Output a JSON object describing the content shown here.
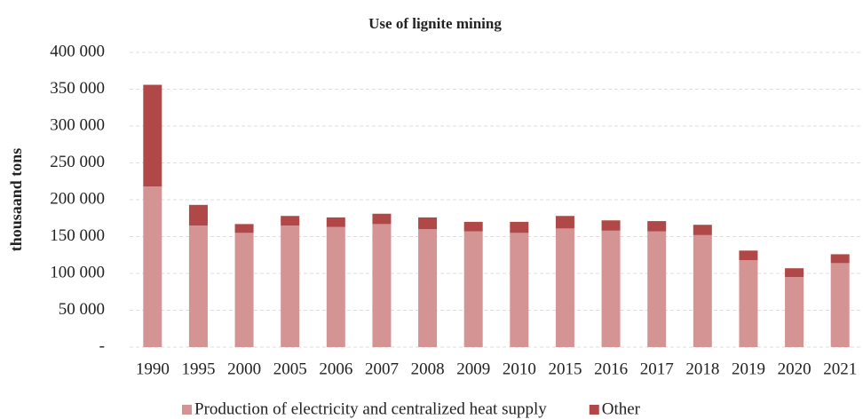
{
  "chart_data": {
    "type": "stacked_bar",
    "title": "Use of lignite mining",
    "ylabel": "thousaand tons",
    "categories": [
      "1990",
      "1995",
      "2000",
      "2005",
      "2006",
      "2007",
      "2008",
      "2009",
      "2010",
      "2015",
      "2016",
      "2017",
      "2018",
      "2019",
      "2020",
      "2021"
    ],
    "series": [
      {
        "name": "Production of electricity and centralized heat supply",
        "color": "#d49494",
        "values": [
          218000,
          165000,
          155000,
          165000,
          163000,
          167000,
          160000,
          157000,
          155000,
          161000,
          158000,
          157000,
          152000,
          118000,
          95000,
          114000
        ]
      },
      {
        "name": "Other",
        "color": "#b04848",
        "values": [
          138000,
          28000,
          12000,
          13000,
          13000,
          14000,
          16000,
          13000,
          15000,
          17000,
          14000,
          14000,
          14000,
          13000,
          12000,
          12000
        ]
      }
    ],
    "ylim": [
      0,
      400000
    ],
    "yticks": [
      {
        "value": 0,
        "label": "-"
      },
      {
        "value": 50000,
        "label": "50 000"
      },
      {
        "value": 100000,
        "label": "100 000"
      },
      {
        "value": 150000,
        "label": "150 000"
      },
      {
        "value": 200000,
        "label": "200 000"
      },
      {
        "value": 250000,
        "label": "250 000"
      },
      {
        "value": 300000,
        "label": "300 000"
      },
      {
        "value": 350000,
        "label": "350 000"
      },
      {
        "value": 400000,
        "label": "400 000"
      }
    ],
    "grid": true
  }
}
